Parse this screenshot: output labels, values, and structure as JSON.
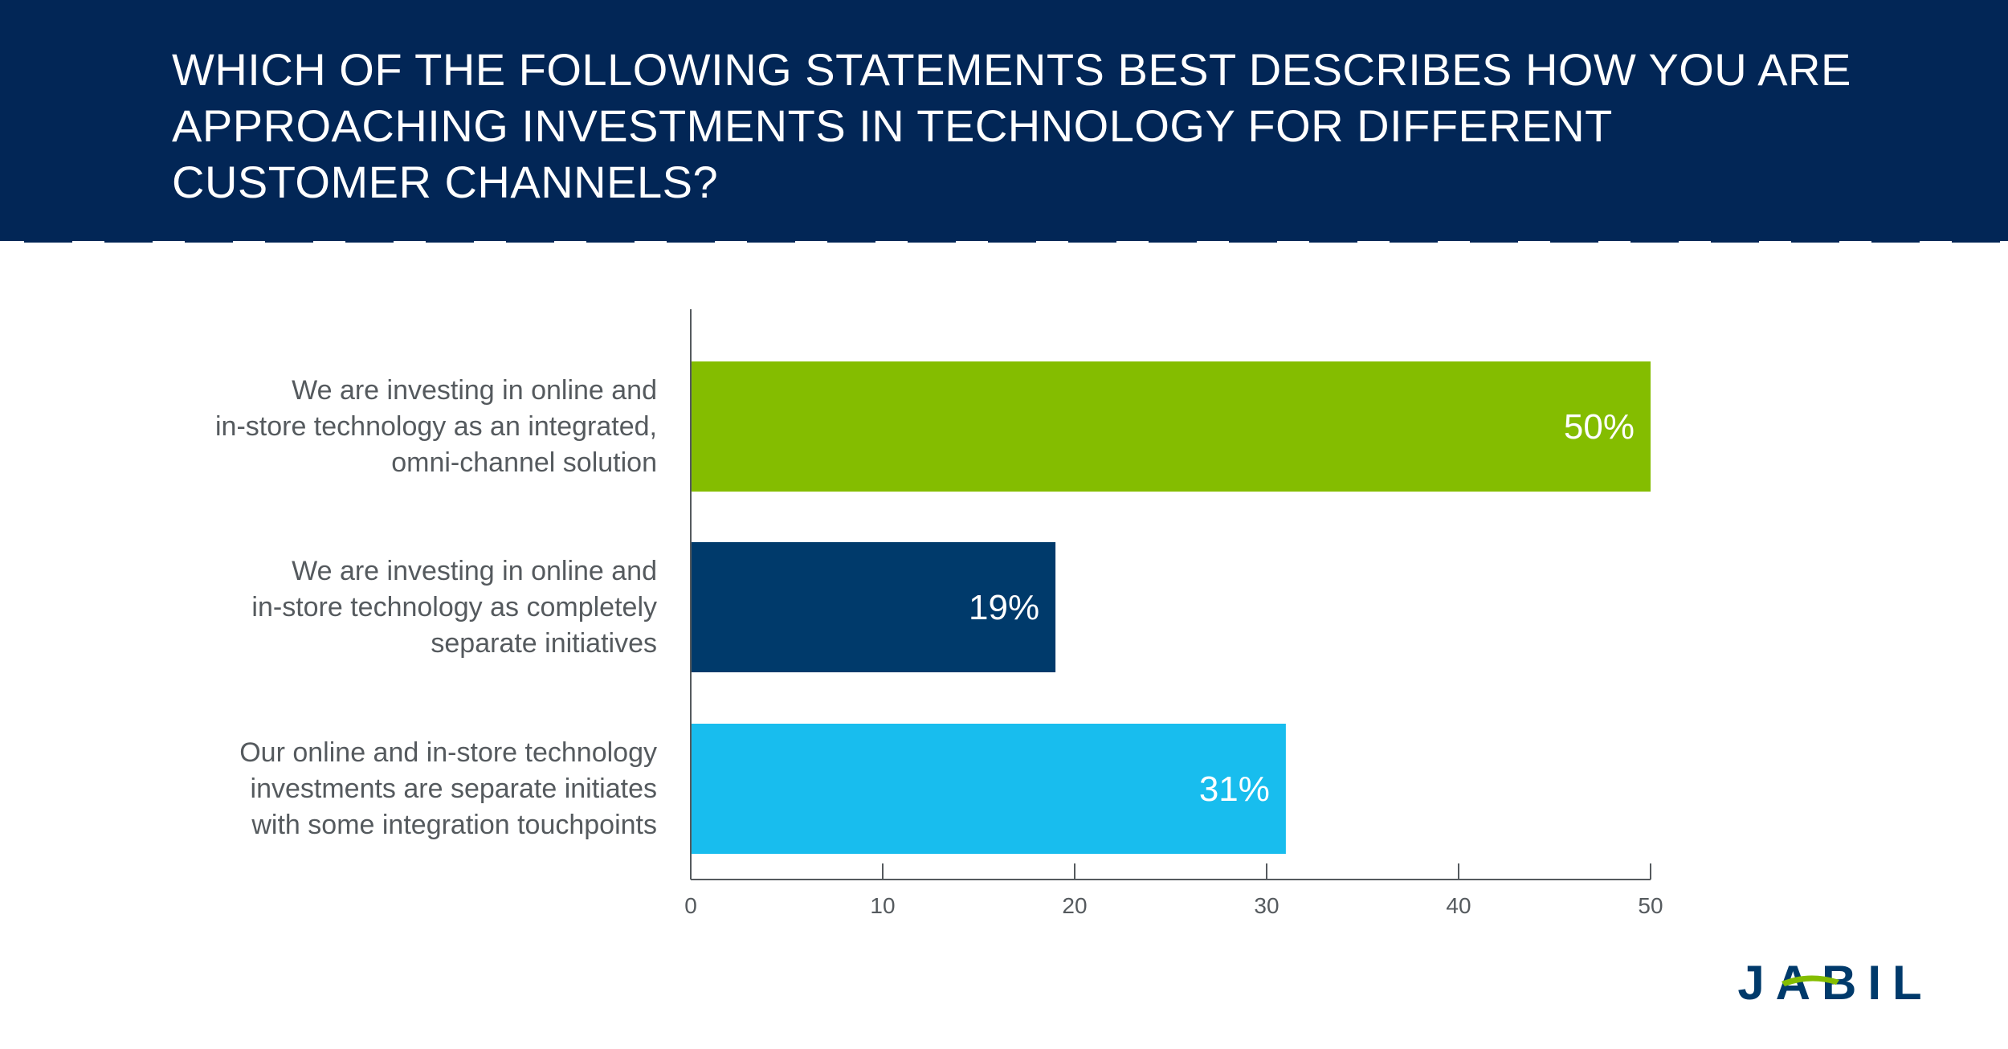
{
  "header": {
    "title": "WHICH OF THE FOLLOWING STATEMENTS BEST DESCRIBES HOW YOU ARE APPROACHING INVESTMENTS IN TECHNOLOGY FOR DIFFERENT CUSTOMER CHANNELS?"
  },
  "logo": {
    "text": "JABIL",
    "icon": "jabil-logo"
  },
  "chart_data": {
    "type": "bar",
    "orientation": "horizontal",
    "title": "WHICH OF THE FOLLOWING STATEMENTS BEST DESCRIBES HOW YOU ARE APPROACHING INVESTMENTS IN TECHNOLOGY FOR DIFFERENT CUSTOMER CHANNELS?",
    "categories": [
      [
        "We are investing in online and",
        "in-store technology as an integrated,",
        "omni-channel solution"
      ],
      [
        "We are investing in online and",
        "in-store technology as completely",
        "separate initiatives"
      ],
      [
        "Our online and in-store technology",
        "investments are separate initiates",
        "with some integration touchpoints"
      ]
    ],
    "values": [
      50,
      19,
      31
    ],
    "data_labels": [
      "50%",
      "19%",
      "31%"
    ],
    "colors": [
      "#84bd00",
      "#003a6b",
      "#18bdee"
    ],
    "xlim": [
      0,
      50
    ],
    "xticks": [
      0,
      10,
      20,
      30,
      40,
      50
    ],
    "xtick_labels": [
      "0",
      "10",
      "20",
      "30",
      "40",
      "50"
    ],
    "grid": false,
    "legend": "none"
  }
}
